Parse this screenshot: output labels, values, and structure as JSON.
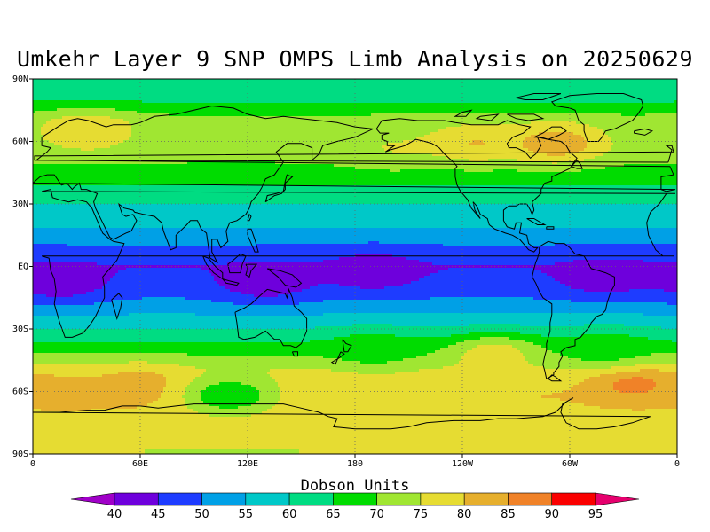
{
  "title": "Umkehr Layer 9 SNP OMPS Limb Analysis on 20250629",
  "colorbar": {
    "title": "Dobson Units",
    "levels": [
      40,
      45,
      50,
      55,
      60,
      65,
      70,
      75,
      80,
      85,
      90,
      95
    ],
    "colors": [
      "#a000c8",
      "#6e00dc",
      "#1e3cff",
      "#00a0e6",
      "#00c8c8",
      "#00dc82",
      "#00dc00",
      "#a0e632",
      "#e6dc32",
      "#e6af2d",
      "#f08228",
      "#fa0000",
      "#e6006e"
    ]
  },
  "axes": {
    "lat_ticks": [
      "90N",
      "60N",
      "30N",
      "EQ",
      "30S",
      "60S",
      "90S"
    ],
    "lon_ticks": [
      "0",
      "60E",
      "120E",
      "180",
      "120W",
      "60W",
      "0"
    ]
  },
  "chart_data": {
    "type": "heatmap",
    "title": "Umkehr Layer 9 SNP OMPS Limb Analysis on 20250629",
    "colorbar_label": "Dobson Units",
    "x_range": [
      0,
      360
    ],
    "y_range": [
      -90,
      90
    ],
    "grid": true,
    "bands": [
      {
        "lat_center": 85,
        "value": 60
      },
      {
        "lat_center": 70,
        "value": 72
      },
      {
        "lat_center": 55,
        "value": 72
      },
      {
        "lat_center": 42,
        "value": 67
      },
      {
        "lat_center": 30,
        "value": 60
      },
      {
        "lat_center": 18,
        "value": 55
      },
      {
        "lat_center": 10,
        "value": 50
      },
      {
        "lat_center": 0,
        "value": 45
      },
      {
        "lat_center": -10,
        "value": 47
      },
      {
        "lat_center": -20,
        "value": 53
      },
      {
        "lat_center": -30,
        "value": 60
      },
      {
        "lat_center": -40,
        "value": 68
      },
      {
        "lat_center": -50,
        "value": 76
      },
      {
        "lat_center": -62,
        "value": 80
      },
      {
        "lat_center": -75,
        "value": 78
      },
      {
        "lat_center": -88,
        "value": 75
      }
    ],
    "features": [
      {
        "lon": 30,
        "lat": 65,
        "value": 80
      },
      {
        "lon": 200,
        "lat": 57,
        "value": 75
      },
      {
        "lon": 247,
        "lat": 59,
        "value": 80
      },
      {
        "lon": 293,
        "lat": 59,
        "value": 84
      },
      {
        "lon": 60,
        "lat": -57,
        "value": 83
      },
      {
        "lon": 20,
        "lat": -60,
        "value": 82
      },
      {
        "lon": 335,
        "lat": -56,
        "value": 87
      },
      {
        "lon": 258,
        "lat": -42,
        "value": 78
      },
      {
        "lon": 175,
        "lat": -62,
        "value": 78
      },
      {
        "lon": 15,
        "lat": -8,
        "value": 42
      },
      {
        "lon": 320,
        "lat": -5,
        "value": 42
      },
      {
        "lon": 130,
        "lat": -8,
        "value": 42
      },
      {
        "lon": 190,
        "lat": -2,
        "value": 42
      },
      {
        "lon": 190,
        "lat": -40,
        "value": 68
      },
      {
        "lon": 320,
        "lat": -40,
        "value": 68
      },
      {
        "lon": 110,
        "lat": -62,
        "value": 65
      }
    ]
  }
}
